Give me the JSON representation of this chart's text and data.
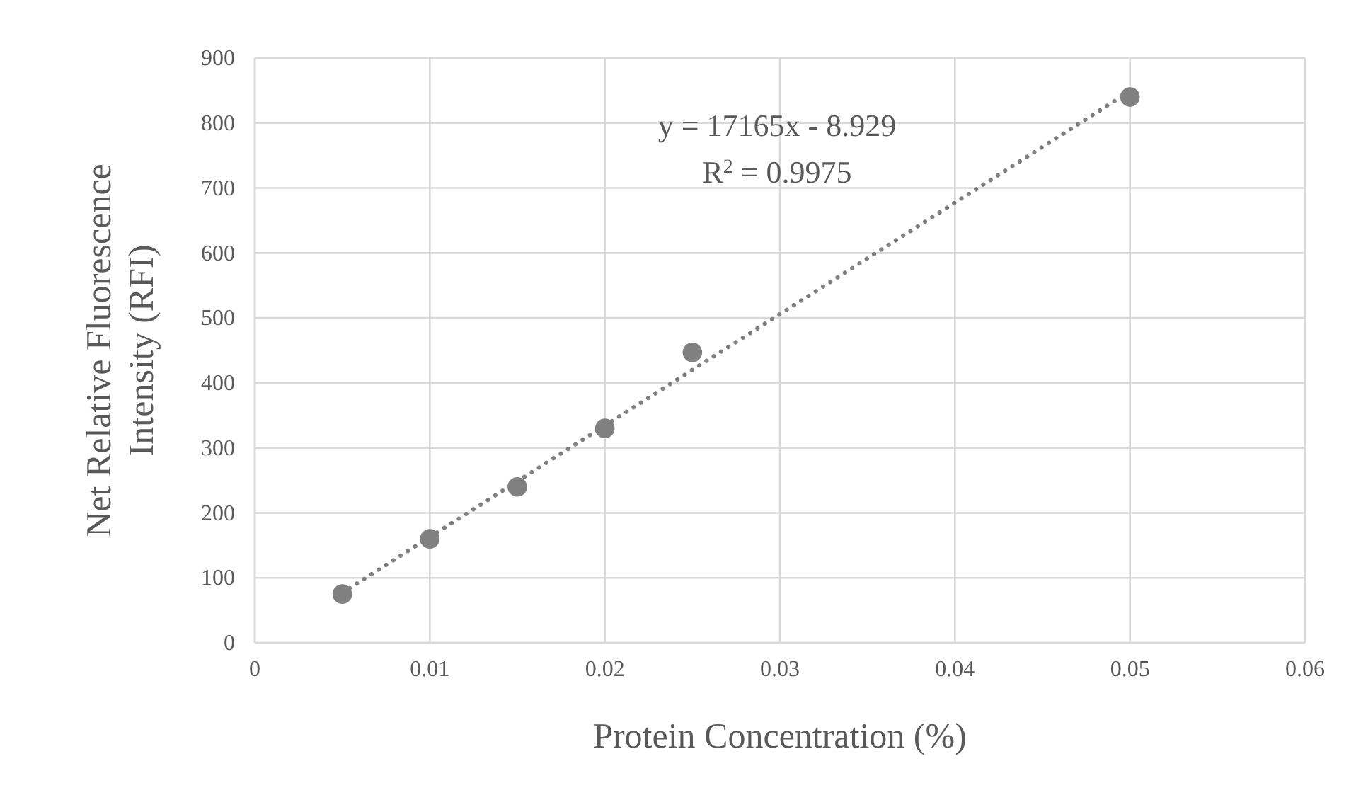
{
  "chart_data": {
    "type": "scatter",
    "xlabel": "Protein Concentration (%)",
    "ylabel": "Net Relative Fluorescence Intensity (RFI)",
    "x": [
      0.005,
      0.01,
      0.015,
      0.02,
      0.025,
      0.05
    ],
    "series": [
      {
        "color": "#808080",
        "marker": "circle",
        "values": [
          75,
          160,
          240,
          330,
          447,
          840
        ]
      },
      {
        "type": "line",
        "color": "#7f7f7f",
        "line_style": "dotted",
        "x": [
          0.005,
          0.05
        ],
        "values": [
          77,
          849
        ]
      }
    ],
    "xlim": [
      0,
      0.06
    ],
    "xticks": [
      0,
      0.01,
      0.02,
      0.03,
      0.04,
      0.05,
      0.06
    ],
    "ylim": [
      0,
      900
    ],
    "yticks": [
      0,
      100,
      200,
      300,
      400,
      500,
      600,
      700,
      800,
      900
    ],
    "grid": true,
    "annotations": [
      "y = 17165x - 8.929",
      "R$^{2}$ = 0.9975"
    ]
  }
}
